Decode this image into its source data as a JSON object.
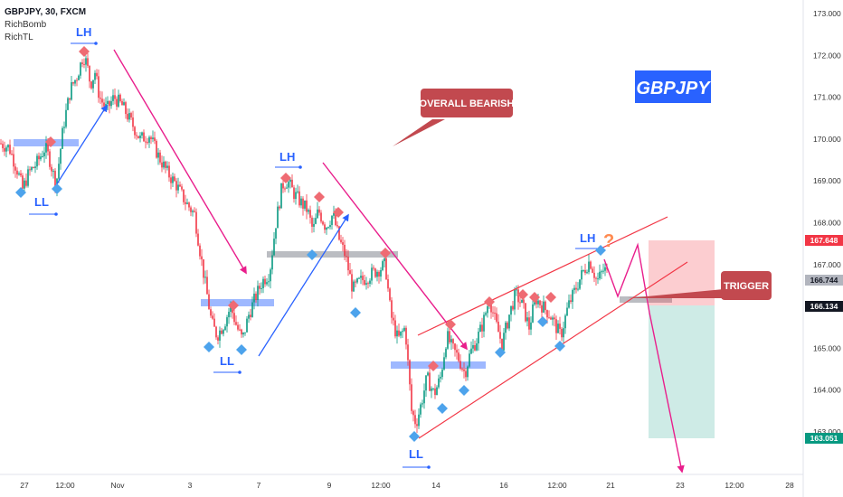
{
  "header": {
    "title": "GBPJPY, 30, FXCM",
    "indicators": [
      "RichBomb",
      "RichTL"
    ]
  },
  "chart_data": {
    "type": "candlestick",
    "symbol": "GBPJPY",
    "interval": "30",
    "source": "FXCM",
    "ylim": [
      162.3,
      173.1
    ],
    "y_ticks": [
      163.0,
      164.0,
      165.0,
      166.0,
      167.0,
      168.0,
      169.0,
      170.0,
      171.0,
      172.0,
      173.0
    ],
    "x_ticks": [
      "27",
      "12:00",
      "Nov",
      "3",
      "7",
      "9",
      "12:00",
      "14",
      "16",
      "12:00",
      "21",
      "23",
      "12:00",
      "28"
    ],
    "price_tags": [
      {
        "value": "167.648",
        "color": "#f23645"
      },
      {
        "value": "166.744",
        "color": "#b2b5be"
      },
      {
        "value": "166.134",
        "color": "#131722"
      },
      {
        "value": "163.051",
        "color": "#089981"
      }
    ],
    "swing_labels": [
      "LH",
      "LL",
      "LH",
      "LL",
      "LL",
      "LH"
    ],
    "annotations": {
      "overall": "OVERALL BEARISH",
      "trigger": "TRIGGER",
      "badge": "GBPJPY",
      "question": "?"
    },
    "series": [
      {
        "name": "",
        "trend": [
          [
            0,
            169.9
          ],
          [
            10,
            169.8
          ],
          [
            20,
            169.2
          ],
          [
            25,
            168.8
          ],
          [
            32,
            169.2
          ],
          [
            40,
            169.4
          ],
          [
            50,
            169.8
          ],
          [
            55,
            169.5
          ],
          [
            62,
            168.9
          ],
          [
            70,
            170.3
          ],
          [
            78,
            171.2
          ],
          [
            85,
            171.5
          ],
          [
            92,
            172.0
          ],
          [
            96,
            171.8
          ],
          [
            100,
            171.3
          ],
          [
            105,
            171.6
          ],
          [
            110,
            171.0
          ],
          [
            118,
            170.7
          ],
          [
            126,
            171.0
          ],
          [
            135,
            170.8
          ],
          [
            145,
            170.4
          ],
          [
            155,
            170.0
          ],
          [
            165,
            170.1
          ],
          [
            175,
            169.6
          ],
          [
            185,
            169.2
          ],
          [
            195,
            168.9
          ],
          [
            205,
            168.5
          ],
          [
            215,
            168.2
          ],
          [
            222,
            167.2
          ],
          [
            228,
            166.4
          ],
          [
            234,
            165.6
          ],
          [
            240,
            165.3
          ],
          [
            248,
            165.6
          ],
          [
            255,
            166.0
          ],
          [
            262,
            165.5
          ],
          [
            268,
            165.2
          ],
          [
            275,
            165.8
          ],
          [
            282,
            166.2
          ],
          [
            290,
            166.6
          ],
          [
            298,
            166.8
          ],
          [
            305,
            168.0
          ],
          [
            312,
            168.9
          ],
          [
            318,
            169.0
          ],
          [
            325,
            168.7
          ],
          [
            332,
            168.5
          ],
          [
            340,
            168.3
          ],
          [
            346,
            167.8
          ],
          [
            352,
            168.3
          ],
          [
            360,
            167.9
          ],
          [
            368,
            168.2
          ],
          [
            375,
            167.6
          ],
          [
            382,
            167.2
          ],
          [
            390,
            166.4
          ],
          [
            398,
            166.6
          ],
          [
            406,
            166.7
          ],
          [
            412,
            166.8
          ],
          [
            420,
            166.9
          ],
          [
            426,
            167.0
          ],
          [
            432,
            165.8
          ],
          [
            440,
            165.2
          ],
          [
            448,
            165.5
          ],
          [
            455,
            163.5
          ],
          [
            460,
            163.2
          ],
          [
            466,
            163.7
          ],
          [
            472,
            164.3
          ],
          [
            480,
            163.9
          ],
          [
            487,
            164.3
          ],
          [
            494,
            165.3
          ],
          [
            500,
            165.0
          ],
          [
            506,
            164.8
          ],
          [
            514,
            164.4
          ],
          [
            520,
            164.9
          ],
          [
            527,
            165.2
          ],
          [
            534,
            165.6
          ],
          [
            541,
            166.2
          ],
          [
            548,
            165.6
          ],
          [
            555,
            165.1
          ],
          [
            563,
            165.8
          ],
          [
            570,
            166.3
          ],
          [
            578,
            166.0
          ],
          [
            585,
            165.5
          ],
          [
            592,
            166.2
          ],
          [
            600,
            166.0
          ],
          [
            608,
            165.8
          ],
          [
            615,
            165.5
          ],
          [
            620,
            165.3
          ],
          [
            628,
            166.0
          ],
          [
            636,
            166.4
          ],
          [
            644,
            166.8
          ],
          [
            652,
            167.1
          ],
          [
            660,
            166.6
          ],
          [
            668,
            166.9
          ],
          [
            674,
            166.7
          ]
        ]
      }
    ]
  }
}
